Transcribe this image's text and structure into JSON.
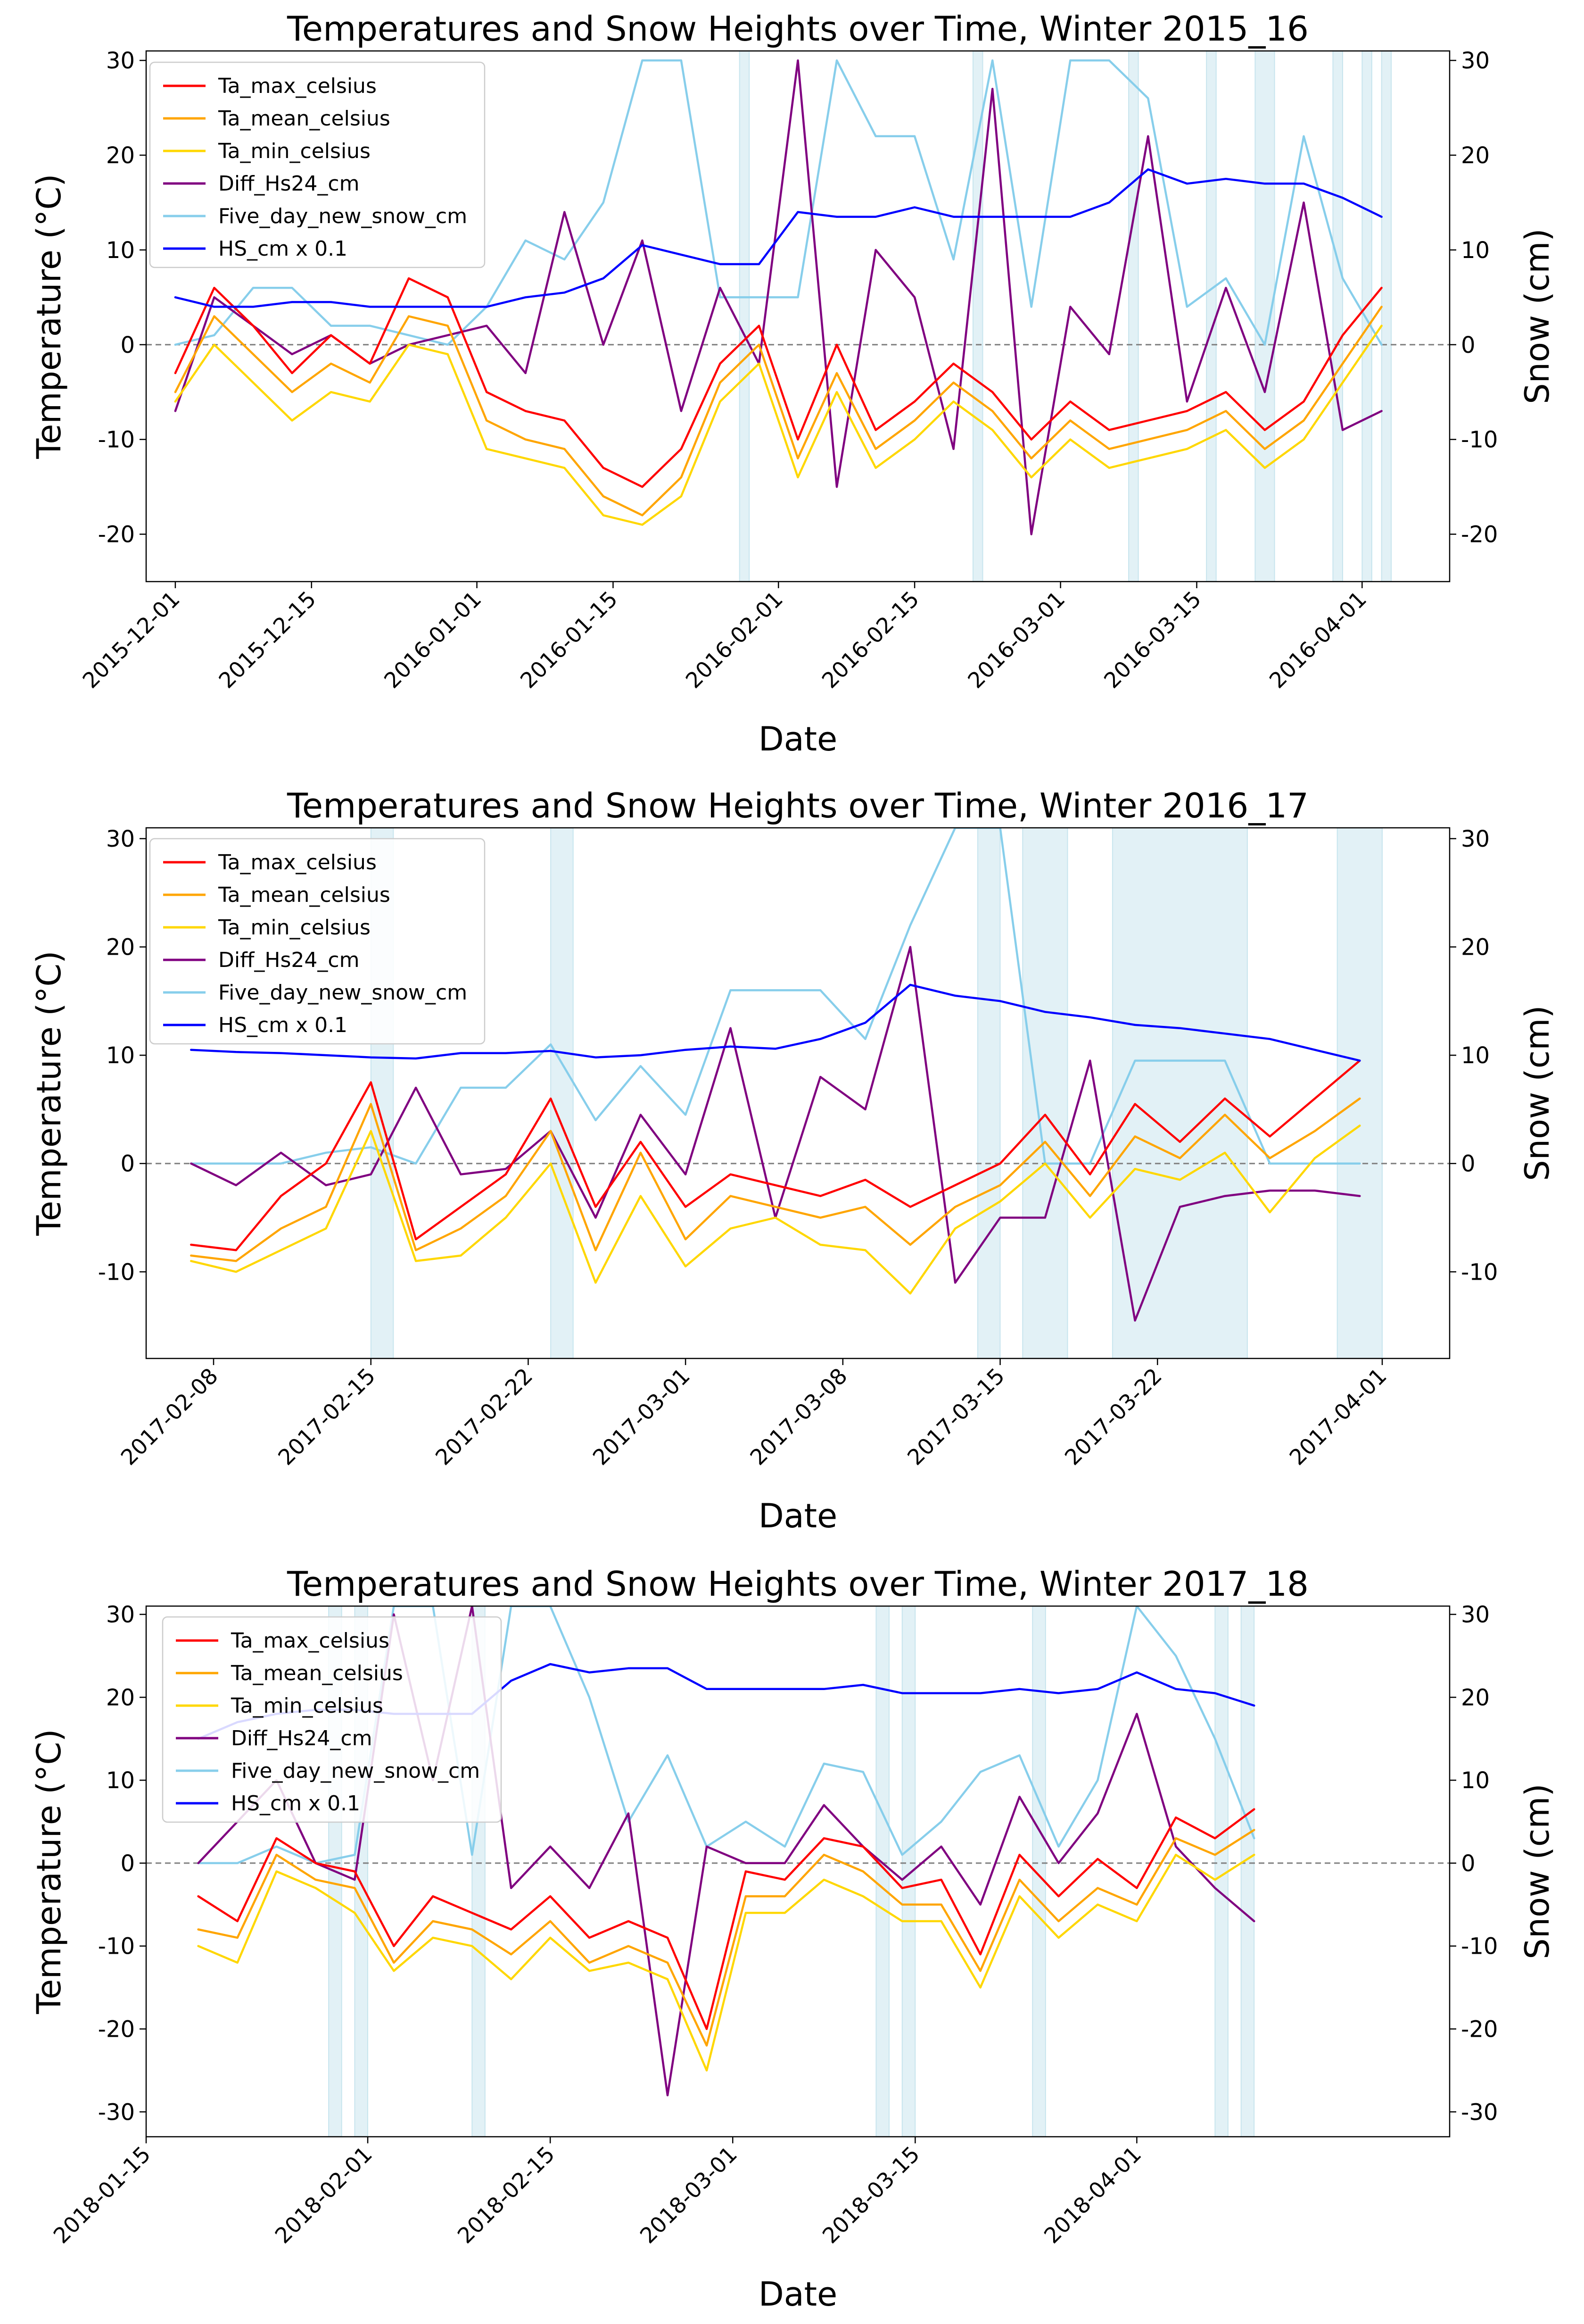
{
  "figure": {
    "y_left_label": "Temperature (°C)",
    "y_right_label": "Snow (cm)",
    "x_label": "Date",
    "zero_line_color": "#808080",
    "band_color": "#add8e6"
  },
  "legend_entries": [
    {
      "name": "Ta_max_celsius",
      "color": "#ff0000"
    },
    {
      "name": "Ta_mean_celsius",
      "color": "#ffa500"
    },
    {
      "name": "Ta_min_celsius",
      "color": "#ffd700"
    },
    {
      "name": "Diff_Hs24_cm",
      "color": "#800080"
    },
    {
      "name": "Five_day_new_snow_cm",
      "color": "#87ceeb"
    },
    {
      "name": "HS_cm x 0.1",
      "color": "#0000ff"
    }
  ],
  "chart_data": [
    {
      "type": "line",
      "title": "Temperatures and Snow Heights over Time, Winter 2015_16",
      "xlabel": "Date",
      "ylabel": "Temperature (°C)",
      "y2label": "Snow (cm)",
      "xlim": [
        "2015-11-28",
        "2016-04-10"
      ],
      "ylim": [
        -25,
        31
      ],
      "y2lim": [
        -25,
        31
      ],
      "yticks": [
        -20,
        -10,
        0,
        10,
        20,
        30
      ],
      "xticks": [
        "2015-12-01",
        "2015-12-15",
        "2016-01-01",
        "2016-01-15",
        "2016-02-01",
        "2016-02-15",
        "2016-03-01",
        "2016-03-15",
        "2016-04-01"
      ],
      "legend_position": "top-left",
      "bands": [
        [
          "2016-01-28",
          "2016-01-29"
        ],
        [
          "2016-02-21",
          "2016-02-22"
        ],
        [
          "2016-03-08",
          "2016-03-09"
        ],
        [
          "2016-03-16",
          "2016-03-17"
        ],
        [
          "2016-03-21",
          "2016-03-23"
        ],
        [
          "2016-03-29",
          "2016-03-30"
        ],
        [
          "2016-04-01",
          "2016-04-02"
        ],
        [
          "2016-04-03",
          "2016-04-04"
        ]
      ],
      "x": [
        "2015-12-01",
        "2015-12-05",
        "2015-12-09",
        "2015-12-13",
        "2015-12-17",
        "2015-12-21",
        "2015-12-25",
        "2015-12-29",
        "2016-01-02",
        "2016-01-06",
        "2016-01-10",
        "2016-01-14",
        "2016-01-18",
        "2016-01-22",
        "2016-01-26",
        "2016-01-30",
        "2016-02-03",
        "2016-02-07",
        "2016-02-11",
        "2016-02-15",
        "2016-02-19",
        "2016-02-23",
        "2016-02-27",
        "2016-03-02",
        "2016-03-06",
        "2016-03-10",
        "2016-03-14",
        "2016-03-18",
        "2016-03-22",
        "2016-03-26",
        "2016-03-30",
        "2016-04-03"
      ],
      "series": [
        {
          "name": "Ta_max_celsius",
          "values": [
            -3,
            6,
            2,
            -3,
            1,
            -2,
            7,
            5,
            -5,
            -7,
            -8,
            -13,
            -15,
            -11,
            -2,
            2,
            -10,
            0,
            -9,
            -6,
            -2,
            -5,
            -10,
            -6,
            -9,
            -8,
            -7,
            -5,
            -9,
            -6,
            1,
            6
          ]
        },
        {
          "name": "Ta_mean_celsius",
          "values": [
            -5,
            3,
            -1,
            -5,
            -2,
            -4,
            3,
            2,
            -8,
            -10,
            -11,
            -16,
            -18,
            -14,
            -4,
            0,
            -12,
            -3,
            -11,
            -8,
            -4,
            -7,
            -12,
            -8,
            -11,
            -10,
            -9,
            -7,
            -11,
            -8,
            -2,
            4
          ]
        },
        {
          "name": "Ta_min_celsius",
          "values": [
            -6,
            0,
            -4,
            -8,
            -5,
            -6,
            0,
            -1,
            -11,
            -12,
            -13,
            -18,
            -19,
            -16,
            -6,
            -2,
            -14,
            -5,
            -13,
            -10,
            -6,
            -9,
            -14,
            -10,
            -13,
            -12,
            -11,
            -9,
            -13,
            -10,
            -4,
            2
          ]
        },
        {
          "name": "Diff_Hs24_cm",
          "values": [
            -7,
            5,
            2,
            -1,
            1,
            -2,
            0,
            1,
            2,
            -3,
            14,
            0,
            11,
            -7,
            6,
            -2,
            30,
            -15,
            10,
            5,
            -11,
            27,
            -20,
            4,
            -1,
            22,
            -6,
            6,
            -5,
            15,
            -9,
            -7
          ]
        },
        {
          "name": "Five_day_new_snow_cm",
          "values": [
            0,
            1,
            6,
            6,
            2,
            2,
            1,
            0,
            4,
            11,
            9,
            15,
            30,
            30,
            5,
            5,
            5,
            30,
            22,
            22,
            9,
            30,
            4,
            30,
            30,
            26,
            4,
            7,
            0,
            22,
            7,
            0
          ]
        },
        {
          "name": "HS_cm x 0.1",
          "values": [
            5,
            4,
            4,
            4.5,
            4.5,
            4,
            4,
            4,
            4,
            5,
            5.5,
            7,
            10.5,
            9.5,
            8.5,
            8.5,
            14,
            13.5,
            13.5,
            14.5,
            13.5,
            13.5,
            13.5,
            13.5,
            15,
            18.5,
            17,
            17.5,
            17,
            17,
            15.5,
            13.5
          ]
        }
      ]
    },
    {
      "type": "line",
      "title": "Temperatures and Snow Heights over Time, Winter 2016_17",
      "xlabel": "Date",
      "ylabel": "Temperature (°C)",
      "y2label": "Snow (cm)",
      "xlim": [
        "2017-02-05",
        "2017-04-04"
      ],
      "ylim": [
        -18,
        31
      ],
      "y2lim": [
        -18,
        31
      ],
      "yticks": [
        -10,
        0,
        10,
        20,
        30
      ],
      "xticks": [
        "2017-02-08",
        "2017-02-15",
        "2017-02-22",
        "2017-03-01",
        "2017-03-08",
        "2017-03-15",
        "2017-03-22",
        "2017-04-01"
      ],
      "legend_position": "top-left",
      "bands": [
        [
          "2017-02-15",
          "2017-02-16"
        ],
        [
          "2017-02-23",
          "2017-02-24"
        ],
        [
          "2017-03-14",
          "2017-03-15"
        ],
        [
          "2017-03-16",
          "2017-03-18"
        ],
        [
          "2017-03-20",
          "2017-03-26"
        ],
        [
          "2017-03-30",
          "2017-04-01"
        ]
      ],
      "x": [
        "2017-02-07",
        "2017-02-09",
        "2017-02-11",
        "2017-02-13",
        "2017-02-15",
        "2017-02-17",
        "2017-02-19",
        "2017-02-21",
        "2017-02-23",
        "2017-02-25",
        "2017-02-27",
        "2017-03-01",
        "2017-03-03",
        "2017-03-05",
        "2017-03-07",
        "2017-03-09",
        "2017-03-11",
        "2017-03-13",
        "2017-03-15",
        "2017-03-17",
        "2017-03-19",
        "2017-03-21",
        "2017-03-23",
        "2017-03-25",
        "2017-03-27",
        "2017-03-29",
        "2017-03-31"
      ],
      "series": [
        {
          "name": "Ta_max_celsius",
          "values": [
            -7.5,
            -8,
            -3,
            0,
            7.5,
            -7,
            -4,
            -1,
            6,
            -4,
            2,
            -4,
            -1,
            -2,
            -3,
            -1.5,
            -4,
            -2,
            0,
            4.5,
            -1,
            5.5,
            2,
            6,
            2.5,
            6,
            9.5
          ]
        },
        {
          "name": "Ta_mean_celsius",
          "values": [
            -8.5,
            -9,
            -6,
            -4,
            5.5,
            -8,
            -6,
            -3,
            3,
            -8,
            1,
            -7,
            -3,
            -4,
            -5,
            -4,
            -7.5,
            -4,
            -2,
            2,
            -3,
            2.5,
            0.5,
            4.5,
            0.5,
            3,
            6
          ]
        },
        {
          "name": "Ta_min_celsius",
          "values": [
            -9,
            -10,
            -8,
            -6,
            3,
            -9,
            -8.5,
            -5,
            0,
            -11,
            -3,
            -9.5,
            -6,
            -5,
            -7.5,
            -8,
            -12,
            -6,
            -3.5,
            0,
            -5,
            -0.5,
            -1.5,
            1,
            -4.5,
            0.5,
            3.5
          ]
        },
        {
          "name": "Diff_Hs24_cm",
          "values": [
            0,
            -2,
            1,
            -2,
            -1,
            7,
            -1,
            -0.5,
            3,
            -5,
            4.5,
            -1,
            12.5,
            -5,
            8,
            5,
            20,
            -11,
            -5,
            -5,
            9.5,
            -14.5,
            -4,
            -3,
            -2.5,
            -2.5,
            -3
          ]
        },
        {
          "name": "Five_day_new_snow_cm",
          "values": [
            0,
            0,
            0,
            1,
            1.5,
            0,
            7,
            7,
            11,
            4,
            9,
            4.5,
            16,
            16,
            16,
            11.5,
            22,
            31,
            31,
            0,
            0,
            9.5,
            9.5,
            9.5,
            0,
            0,
            0
          ]
        },
        {
          "name": "HS_cm x 0.1",
          "values": [
            10.5,
            10.3,
            10.2,
            10,
            9.8,
            9.7,
            10.2,
            10.2,
            10.4,
            9.8,
            10,
            10.5,
            10.8,
            10.6,
            11.5,
            13,
            16.5,
            15.5,
            15,
            14,
            13.5,
            12.8,
            12.5,
            12,
            11.5,
            10.5,
            9.5
          ]
        }
      ]
    },
    {
      "type": "line",
      "title": "Temperatures and Snow Heights over Time, Winter 2017_18",
      "xlabel": "Date",
      "ylabel": "Temperature (°C)",
      "y2label": "Snow (cm)",
      "xlim": [
        "2018-01-15",
        "2018-04-25"
      ],
      "ylim": [
        -33,
        31
      ],
      "y2lim": [
        -33,
        31
      ],
      "yticks": [
        -30,
        -20,
        -10,
        0,
        10,
        20,
        30
      ],
      "xticks": [
        "2018-01-15",
        "2018-02-01",
        "2018-02-15",
        "2018-03-01",
        "2018-03-15",
        "2018-04-01"
      ],
      "legend_position": "top-left",
      "bands": [
        [
          "2018-01-29",
          "2018-01-30"
        ],
        [
          "2018-01-31",
          "2018-02-01"
        ],
        [
          "2018-02-09",
          "2018-02-10"
        ],
        [
          "2018-03-12",
          "2018-03-13"
        ],
        [
          "2018-03-14",
          "2018-03-15"
        ],
        [
          "2018-03-24",
          "2018-03-25"
        ],
        [
          "2018-04-07",
          "2018-04-08"
        ],
        [
          "2018-04-09",
          "2018-04-10"
        ]
      ],
      "x": [
        "2018-01-19",
        "2018-01-22",
        "2018-01-25",
        "2018-01-28",
        "2018-01-31",
        "2018-02-03",
        "2018-02-06",
        "2018-02-09",
        "2018-02-12",
        "2018-02-15",
        "2018-02-18",
        "2018-02-21",
        "2018-02-24",
        "2018-02-27",
        "2018-03-02",
        "2018-03-05",
        "2018-03-08",
        "2018-03-11",
        "2018-03-14",
        "2018-03-17",
        "2018-03-20",
        "2018-03-23",
        "2018-03-26",
        "2018-03-29",
        "2018-04-01",
        "2018-04-04",
        "2018-04-07",
        "2018-04-10"
      ],
      "series": [
        {
          "name": "Ta_max_celsius",
          "values": [
            -4,
            -7,
            3,
            0,
            -1,
            -10,
            -4,
            -6,
            -8,
            -4,
            -9,
            -7,
            -9,
            -20,
            -1,
            -2,
            3,
            2,
            -3,
            -2,
            -11,
            1,
            -4,
            0.5,
            -3,
            5.5,
            3,
            6.5
          ]
        },
        {
          "name": "Ta_mean_celsius",
          "values": [
            -8,
            -9,
            1,
            -2,
            -3,
            -12,
            -7,
            -8,
            -11,
            -7,
            -12,
            -10,
            -12,
            -22,
            -4,
            -4,
            1,
            -1,
            -5,
            -5,
            -13,
            -2,
            -7,
            -3,
            -5,
            3,
            1,
            4
          ]
        },
        {
          "name": "Ta_min_celsius",
          "values": [
            -10,
            -12,
            -1,
            -3,
            -6,
            -13,
            -9,
            -10,
            -14,
            -9,
            -13,
            -12,
            -14,
            -25,
            -6,
            -6,
            -2,
            -4,
            -7,
            -7,
            -15,
            -4,
            -9,
            -5,
            -7,
            1,
            -2,
            1
          ]
        },
        {
          "name": "Diff_Hs24_cm",
          "values": [
            0,
            5,
            10,
            0,
            -2,
            30,
            10,
            31,
            -3,
            2,
            -3,
            6,
            -28,
            2,
            0,
            0,
            7,
            2,
            -2,
            2,
            -5,
            8,
            0,
            6,
            18,
            2,
            -3,
            -7
          ]
        },
        {
          "name": "Five_day_new_snow_cm",
          "values": [
            0,
            0,
            2,
            0,
            1,
            31,
            31,
            1,
            31,
            31,
            20,
            5,
            13,
            2,
            5,
            2,
            12,
            11,
            1,
            5,
            11,
            13,
            2,
            10,
            31,
            25,
            15,
            3
          ]
        },
        {
          "name": "HS_cm x 0.1",
          "values": [
            15,
            17,
            18,
            18.5,
            18.5,
            18,
            18,
            18,
            22,
            24,
            23,
            23.5,
            23.5,
            21,
            21,
            21,
            21,
            21.5,
            20.5,
            20.5,
            20.5,
            21,
            20.5,
            21,
            23,
            21,
            20.5,
            19
          ]
        }
      ]
    }
  ]
}
